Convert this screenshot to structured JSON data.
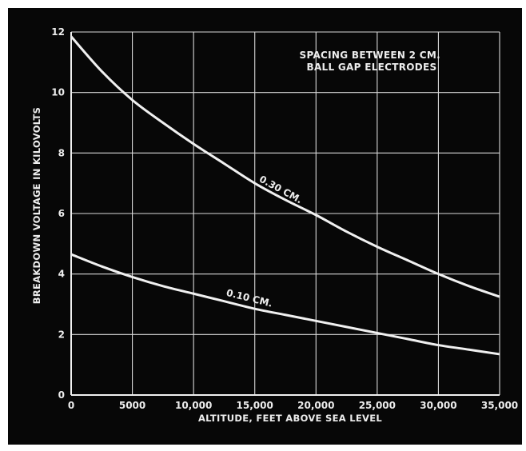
{
  "chart_data": {
    "type": "line",
    "title": "",
    "annotation": [
      "SPACING BETWEEN 2 CM.",
      "BALL GAP ELECTRODES"
    ],
    "xlabel": "ALTITUDE, FEET ABOVE SEA LEVEL",
    "ylabel": "BREAKDOWN VOLTAGE IN KILOVOLTS",
    "xlim": [
      0,
      35000
    ],
    "ylim": [
      0,
      12
    ],
    "x_ticks": [
      0,
      5000,
      10000,
      15000,
      20000,
      25000,
      30000,
      35000
    ],
    "x_tick_labels": [
      "0",
      "5000",
      "10,000",
      "15,000",
      "20,000",
      "25,000",
      "30,000",
      "35,000"
    ],
    "y_ticks": [
      0,
      2,
      4,
      6,
      8,
      10,
      12
    ],
    "y_tick_labels": [
      "0",
      "2",
      "4",
      "6",
      "8",
      "10",
      "12"
    ],
    "grid": true,
    "legend": "none",
    "colors": {
      "background": "#070707",
      "line": "#f0f0f0",
      "grid": "#d8d8d8"
    },
    "series": [
      {
        "name": "0.30 CM.",
        "x": [
          0,
          2500,
          5000,
          7500,
          10000,
          12500,
          15000,
          17500,
          20000,
          22500,
          25000,
          27500,
          30000,
          32500,
          35000
        ],
        "y": [
          11.85,
          10.7,
          9.75,
          9.0,
          8.3,
          7.65,
          7.0,
          6.45,
          5.95,
          5.4,
          4.9,
          4.45,
          4.0,
          3.6,
          3.25
        ],
        "label_at": [
          17000,
          6.7
        ]
      },
      {
        "name": "0.10 CM.",
        "x": [
          0,
          2500,
          5000,
          7500,
          10000,
          12500,
          15000,
          17500,
          20000,
          22500,
          25000,
          27500,
          30000,
          32500,
          35000
        ],
        "y": [
          4.65,
          4.25,
          3.9,
          3.6,
          3.35,
          3.1,
          2.85,
          2.65,
          2.45,
          2.25,
          2.05,
          1.85,
          1.65,
          1.5,
          1.35
        ],
        "label_at": [
          14500,
          3.1
        ]
      }
    ]
  }
}
